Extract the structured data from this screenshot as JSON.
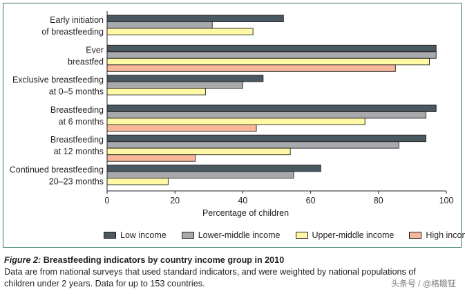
{
  "chart_data": {
    "type": "bar",
    "orientation": "horizontal",
    "title": "Breastfeeding indicators by country income group in 2010",
    "xlabel": "Percentage of children",
    "ylabel": "",
    "xlim": [
      0,
      100
    ],
    "xticks": [
      0,
      20,
      40,
      60,
      80,
      100
    ],
    "grid": false,
    "legend_position": "bottom",
    "categories": [
      [
        "Early initiation",
        "of breastfeeding"
      ],
      [
        "Ever",
        "breastfed"
      ],
      [
        "Exclusive breastfeeding",
        "at 0–5 months"
      ],
      [
        "Breastfeeding",
        "at 6 months"
      ],
      [
        "Breastfeeding",
        "at 12 months"
      ],
      [
        "Continued breastfeeding",
        "20–23 months"
      ]
    ],
    "series": [
      {
        "name": "Low income",
        "color": "#4a5862",
        "values": [
          52,
          97,
          46,
          97,
          94,
          63
        ]
      },
      {
        "name": "Lower-middle income",
        "color": "#a7a9ac",
        "values": [
          31,
          97,
          40,
          94,
          86,
          55
        ]
      },
      {
        "name": "Upper-middle income",
        "color": "#fff9a6",
        "values": [
          43,
          95,
          29,
          76,
          54,
          18
        ]
      },
      {
        "name": "High income",
        "color": "#f7b79a",
        "values": [
          null,
          85,
          null,
          44,
          26,
          null
        ]
      }
    ]
  },
  "caption": {
    "figure_label": "Figure 2:",
    "title": "Breastfeeding indicators by country income group in 2010",
    "body": "Data are from national surveys that used standard indicators, and were weighted by national populations of children under 2 years. Data for up to 153 countries."
  },
  "watermark": "头条号 / @格瞻钲",
  "colors": {
    "frame_border": "#2f7a55",
    "bar_outline": "#231f20",
    "text": "#231f20"
  }
}
